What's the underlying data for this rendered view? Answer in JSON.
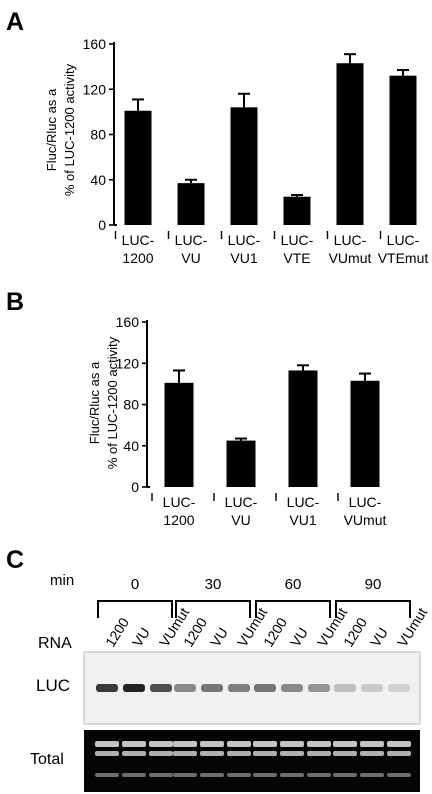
{
  "colors": {
    "bar": "#000000",
    "gel_light_bg": "#f1f1f1",
    "gel_dark_bg": "#050505"
  },
  "chart_data": [
    {
      "panel_letter": "A",
      "type": "bar",
      "ylabel_line1": "Fluc/Rluc as a",
      "ylabel_line2": "% of LUC-1200 activity",
      "ylim": [
        0,
        160
      ],
      "yticks": [
        "0",
        "40",
        "80",
        "120",
        "160"
      ],
      "categories": [
        {
          "line1": "LUC-",
          "line2": "1200"
        },
        {
          "line1": "LUC-",
          "line2": "VU"
        },
        {
          "line1": "LUC-",
          "line2": "VU1"
        },
        {
          "line1": "LUC-",
          "line2": "VTE"
        },
        {
          "line1": "LUC-",
          "line2": "VUmut"
        },
        {
          "line1": "LUC-",
          "line2": "VTEmut"
        }
      ],
      "values": [
        101,
        37,
        104,
        25,
        143,
        132
      ],
      "errors": [
        10,
        3,
        12,
        1.5,
        8,
        5
      ]
    },
    {
      "panel_letter": "B",
      "type": "bar",
      "ylabel_line1": "Fluc/Rluc as a",
      "ylabel_line2": "% of LUC-1200 activity",
      "ylim": [
        0,
        160
      ],
      "yticks": [
        "0",
        "40",
        "80",
        "120",
        "160"
      ],
      "categories": [
        {
          "line1": "LUC-",
          "line2": "1200"
        },
        {
          "line1": "LUC-",
          "line2": "VU"
        },
        {
          "line1": "LUC-",
          "line2": "VU1"
        },
        {
          "line1": "LUC-",
          "line2": "VUmut"
        }
      ],
      "values": [
        101,
        45,
        113,
        103
      ],
      "errors": [
        12,
        2,
        5,
        7
      ]
    }
  ],
  "gel": {
    "panel_letter": "C",
    "min_label": "min",
    "rna_label": "RNA",
    "luc_label": "LUC",
    "total_label": "Total",
    "timepoints": [
      "0",
      "30",
      "60",
      "90"
    ],
    "lanes": [
      "1200",
      "VU",
      "VUmut"
    ],
    "luc_band_intensity": [
      0.9,
      1.0,
      0.8,
      0.5,
      0.6,
      0.55,
      0.6,
      0.5,
      0.45,
      0.25,
      0.2,
      0.15
    ]
  }
}
